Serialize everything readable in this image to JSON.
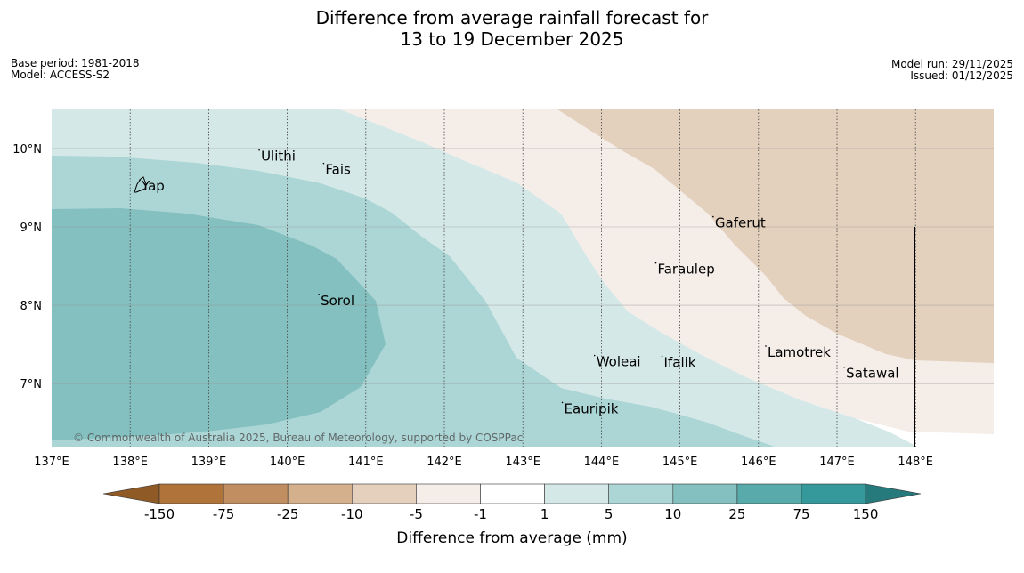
{
  "title": {
    "line1": "Difference from average rainfall forecast for",
    "line2": "13 to 19 December 2025"
  },
  "meta": {
    "base_period": "Base period: 1981-2018",
    "model": "Model: ACCESS-S2",
    "model_run": "Model run: 29/11/2025",
    "issued": "Issued: 01/12/2025"
  },
  "map": {
    "lon_range": [
      137,
      149
    ],
    "lat_range": [
      6.2,
      10.5
    ],
    "x_ticks": [
      "137°E",
      "138°E",
      "139°E",
      "140°E",
      "141°E",
      "142°E",
      "143°E",
      "144°E",
      "145°E",
      "146°E",
      "147°E",
      "148°E"
    ],
    "y_ticks": [
      "10°N",
      "9°N",
      "8°N",
      "7°N"
    ],
    "places": [
      {
        "name": "Yap",
        "lon": 138.1,
        "lat": 9.52
      },
      {
        "name": "Ulithi",
        "lon": 139.62,
        "lat": 9.9
      },
      {
        "name": "Fais",
        "lon": 140.44,
        "lat": 9.73
      },
      {
        "name": "Gaferut",
        "lon": 145.4,
        "lat": 9.05
      },
      {
        "name": "Faraulep",
        "lon": 144.67,
        "lat": 8.46
      },
      {
        "name": "Sorol",
        "lon": 140.38,
        "lat": 8.06
      },
      {
        "name": "Woleai",
        "lon": 143.89,
        "lat": 7.28
      },
      {
        "name": "Ifalik",
        "lon": 144.75,
        "lat": 7.27
      },
      {
        "name": "Lamotrek",
        "lon": 146.07,
        "lat": 7.4
      },
      {
        "name": "Satawal",
        "lon": 147.07,
        "lat": 7.13
      },
      {
        "name": "Eauripik",
        "lon": 143.48,
        "lat": 6.68
      }
    ],
    "copyright": "© Commonwealth of Australia 2025, Bureau of Meteorology, supported by COSPPac"
  },
  "colorbar": {
    "label": "Difference from average (mm)",
    "ticks": [
      "-150",
      "-75",
      "-25",
      "-10",
      "-5",
      "-1",
      "1",
      "5",
      "10",
      "25",
      "75",
      "150"
    ],
    "colors": {
      "extend_low": "#8f5a26",
      "bins": [
        "#b0743a",
        "#c08e60",
        "#d4b08c",
        "#e4d0bd",
        "#f4ede8",
        "#ffffff",
        "#d5e8e8",
        "#acd5d5",
        "#83c0bf",
        "#58abaa",
        "#35989a"
      ],
      "extend_high": "#277a7b"
    }
  }
}
